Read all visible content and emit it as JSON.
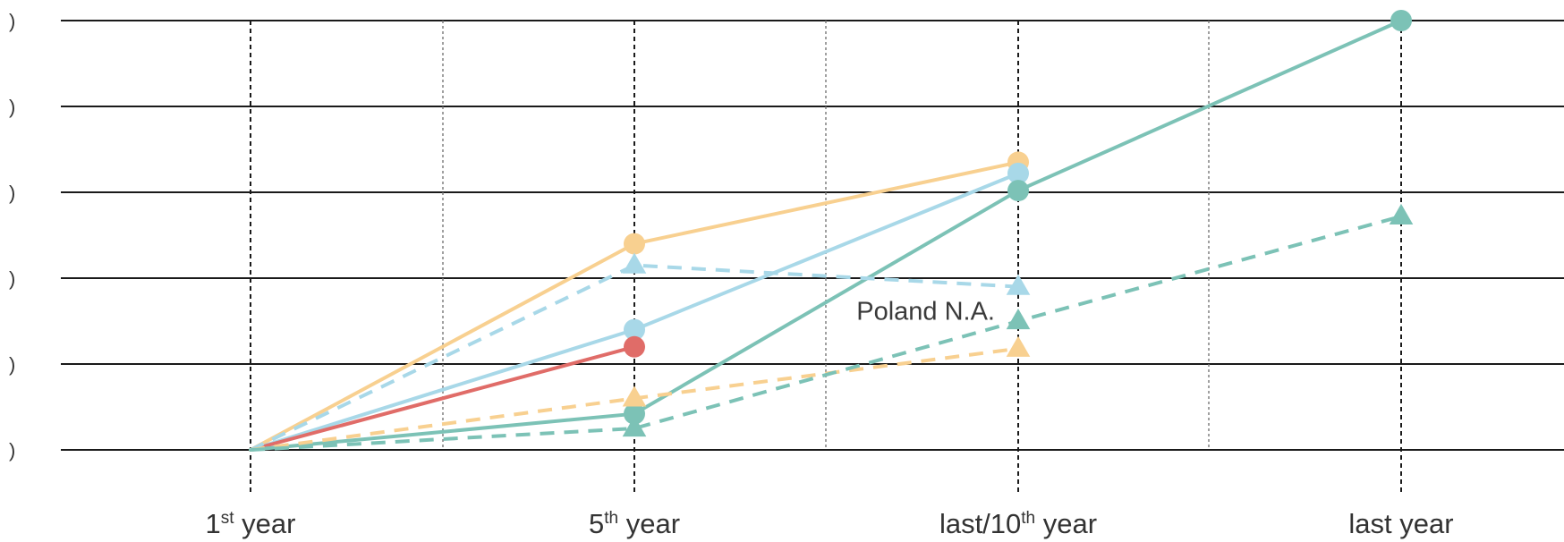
{
  "chart_data": {
    "type": "line",
    "categories": [
      {
        "pre": "1",
        "sup": "st",
        "post": " year"
      },
      {
        "pre": "5",
        "sup": "th",
        "post": " year"
      },
      {
        "pre": "last/10",
        "sup": "th",
        "post": " year"
      },
      {
        "pre": "last year",
        "sup": "",
        "post": ""
      }
    ],
    "ylim": [
      0,
      5
    ],
    "y_ticks": [
      0,
      1,
      2,
      3,
      4,
      5
    ],
    "y_tick_labels": [
      ")",
      ")",
      ")",
      ")",
      ")",
      ")"
    ],
    "grid": "on",
    "series": [
      {
        "values": [
          0,
          2.4,
          3.35,
          null
        ],
        "color": "#f8d090",
        "dash": false,
        "marker": "circle"
      },
      {
        "values": [
          0,
          1.4,
          3.22,
          null
        ],
        "color": "#a8d8e8",
        "dash": false,
        "marker": "circle"
      },
      {
        "values": [
          0,
          1.2,
          null,
          null
        ],
        "color": "#e06c68",
        "dash": false,
        "marker": "circle"
      },
      {
        "values": [
          0,
          0.42,
          3.02,
          5.0
        ],
        "color": "#7cc2b6",
        "dash": false,
        "marker": "circle"
      },
      {
        "values": [
          0,
          2.15,
          1.9,
          null
        ],
        "color": "#a8d8e8",
        "dash": true,
        "marker": "triangle"
      },
      {
        "values": [
          0,
          0.6,
          1.18,
          null
        ],
        "color": "#f8d090",
        "dash": true,
        "marker": "triangle"
      },
      {
        "values": [
          0,
          0.25,
          1.5,
          2.72
        ],
        "color": "#7cc2b6",
        "dash": true,
        "marker": "triangle"
      }
    ],
    "annotations": [
      {
        "text": "Poland N.A.",
        "x": 2,
        "y": 1.62
      }
    ]
  }
}
